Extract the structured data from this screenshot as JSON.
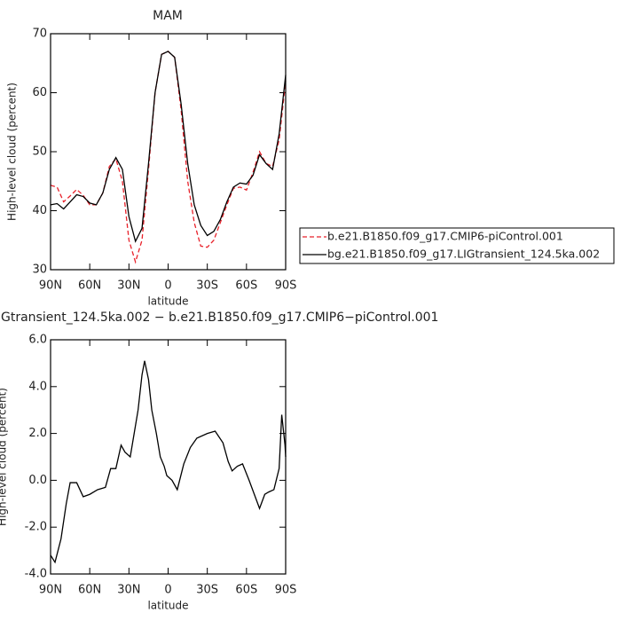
{
  "chart_data": [
    {
      "type": "line",
      "title": "MAM",
      "x_label": "latitude",
      "y_label": "High-level cloud (percent)",
      "x": [
        90,
        85,
        80,
        75,
        70,
        65,
        60,
        55,
        50,
        45,
        40,
        35,
        30,
        25,
        20,
        15,
        10,
        5,
        0,
        -5,
        -10,
        -15,
        -20,
        -25,
        -30,
        -35,
        -40,
        -45,
        -50,
        -55,
        -60,
        -65,
        -70,
        -75,
        -80,
        -85,
        -90
      ],
      "series": [
        {
          "name": "b.e21.B1850.f09_g17.CMIP6-piControl.001",
          "color": "#e8212a",
          "line_style": "dashed",
          "values": [
            44.3,
            44,
            41.5,
            42.5,
            43.6,
            42.6,
            41,
            41,
            43,
            47.5,
            48.8,
            45,
            35,
            31.3,
            35,
            47,
            60,
            66.5,
            67,
            66,
            57,
            45,
            38,
            34,
            33.8,
            35,
            38,
            41,
            43.8,
            44,
            43.5,
            46.5,
            50,
            48,
            47.5,
            52,
            62
          ]
        },
        {
          "name": "bg.e21.B1850.f09_g17.LIGtransient_124.5ka.002",
          "color": "#000000",
          "line_style": "solid",
          "values": [
            41,
            41.2,
            40.3,
            41.5,
            42.7,
            42.4,
            41.3,
            41,
            43,
            47,
            49,
            47,
            39,
            34.8,
            37,
            48,
            60,
            66.5,
            67,
            66,
            58,
            48,
            41,
            37.5,
            35.8,
            36.5,
            38.5,
            41.5,
            44,
            44.7,
            44.5,
            46,
            49.5,
            48,
            47,
            53,
            63
          ]
        }
      ],
      "xlim": [
        90,
        -90
      ],
      "xticks": [
        {
          "value": 90,
          "label": "90N"
        },
        {
          "value": 60,
          "label": "60N"
        },
        {
          "value": 30,
          "label": "30N"
        },
        0,
        {
          "value": -30,
          "label": "30S"
        },
        {
          "value": -60,
          "label": "60S"
        },
        {
          "value": -90,
          "label": "90S"
        }
      ],
      "ylim": [
        30,
        70
      ],
      "yticks": [
        30,
        40,
        50,
        60,
        70
      ],
      "legend": "right"
    },
    {
      "type": "line",
      "title": "Gtransient_124.5ka.002 − b.e21.B1850.f09_g17.CMIP6−piControl.001",
      "x_label": "latitude",
      "y_label": "High-level cloud (percent)",
      "x": [
        90,
        86.6,
        82,
        78,
        75,
        70,
        65,
        60,
        54,
        48,
        44,
        40,
        36,
        33,
        29,
        26,
        23,
        20,
        18,
        15,
        12.5,
        9,
        6,
        3,
        1,
        -3,
        -7,
        -12,
        -17,
        -22,
        -30,
        -36,
        -42,
        -46,
        -49,
        -53,
        -57,
        -62,
        -66,
        -70,
        -74,
        -77,
        -81,
        -85,
        -87,
        -89.5,
        -90
      ],
      "series": [
        {
          "color": "#000000",
          "line_style": "solid",
          "values": [
            -3.2,
            -3.5,
            -2.5,
            -1,
            -0.1,
            -0.1,
            -0.7,
            -0.6,
            -0.4,
            -0.3,
            0.5,
            0.5,
            1.5,
            1.2,
            1,
            2,
            3,
            4.5,
            5.1,
            4.3,
            3,
            2,
            1,
            0.6,
            0.2,
            0,
            -0.4,
            0.7,
            1.4,
            1.8,
            2,
            2.1,
            1.6,
            0.8,
            0.4,
            0.6,
            0.7,
            0,
            -0.6,
            -1.2,
            -0.6,
            -0.5,
            -0.4,
            0.5,
            2.8,
            1.5,
            1
          ]
        }
      ],
      "xlim": [
        90,
        -90
      ],
      "xticks": [
        {
          "value": 90,
          "label": "90N"
        },
        {
          "value": 60,
          "label": "60N"
        },
        {
          "value": 30,
          "label": "30N"
        },
        0,
        {
          "value": -30,
          "label": "30S"
        },
        {
          "value": -60,
          "label": "60S"
        },
        {
          "value": -90,
          "label": "90S"
        }
      ],
      "ylim": [
        -4,
        6
      ],
      "yticks": [
        {
          "value": -4,
          "label": "-4.0"
        },
        {
          "value": -2,
          "label": "-2.0"
        },
        {
          "value": 0,
          "label": "0.0"
        },
        {
          "value": 2,
          "label": "2.0"
        },
        {
          "value": 4,
          "label": "4.0"
        },
        {
          "value": 6,
          "label": "6.0"
        }
      ]
    }
  ]
}
